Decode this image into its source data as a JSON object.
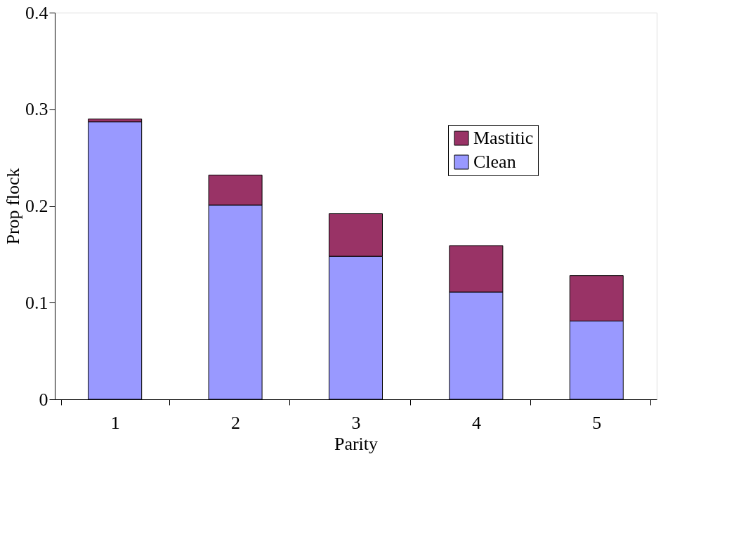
{
  "chart_data": {
    "type": "bar",
    "stacked": true,
    "xlabel": "Parity",
    "ylabel": "Prop flock",
    "categories": [
      "1",
      "2",
      "3",
      "4",
      "5"
    ],
    "series": [
      {
        "name": "Clean",
        "color": "#9999ff",
        "values": [
          0.287,
          0.201,
          0.148,
          0.111,
          0.081
        ]
      },
      {
        "name": "Mastitic",
        "color": "#993366",
        "values": [
          0.003,
          0.031,
          0.044,
          0.048,
          0.047
        ]
      }
    ],
    "ylim": [
      0,
      0.4
    ],
    "yticks": [
      0,
      0.1,
      0.2,
      0.3,
      0.4
    ],
    "grid": false,
    "legend": "top right"
  }
}
